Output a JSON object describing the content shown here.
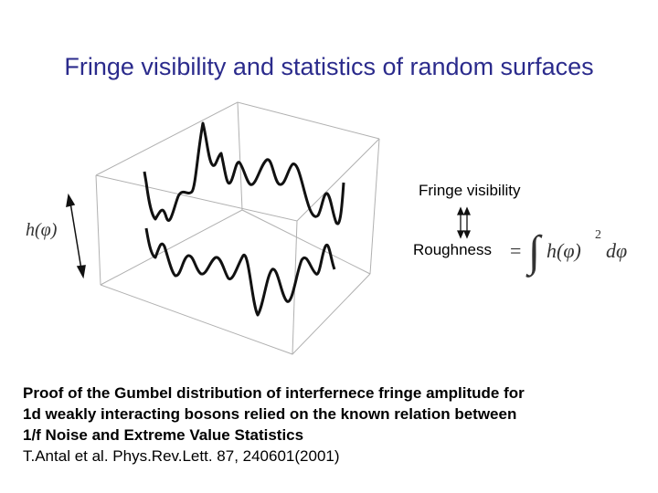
{
  "title": "Fringe visibility and statistics of random surfaces",
  "figure": {
    "h_label": "h(φ)",
    "fringe_visibility_label": "Fringe visibility",
    "roughness_label": "Roughness",
    "formula": {
      "equals": "=",
      "integral": "∫",
      "integrand": "h(φ)",
      "exponent": "2",
      "differential": "dφ"
    }
  },
  "body": {
    "lines": [
      "Proof of the Gumbel distribution of interfernece fringe amplitude for",
      "1d weakly interacting bosons relied on the known relation between",
      "1/f Noise and Extreme Value Statistics"
    ],
    "reference": "T.Antal et al. Phys.Rev.Lett. 87, 240601(2001)"
  }
}
